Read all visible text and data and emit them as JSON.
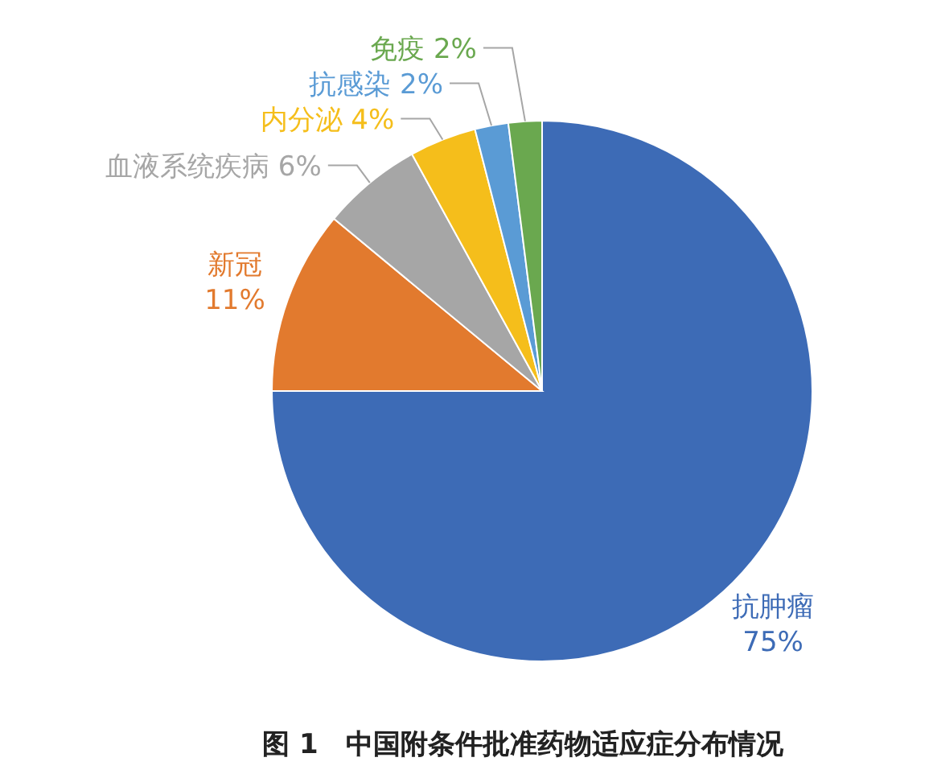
{
  "chart_data": {
    "type": "pie",
    "title": "图 1　中国附条件批准药物适应症分布情况",
    "categories": [
      "抗肿瘤",
      "新冠",
      "血液系统疾病",
      "内分泌",
      "抗感染",
      "免疫"
    ],
    "values": [
      75,
      11,
      6,
      4,
      2,
      2
    ],
    "value_labels": [
      "75%",
      "11%",
      "6%",
      "4%",
      "2%",
      "2%"
    ],
    "colors": [
      "#3d6bb6",
      "#e27a2e",
      "#a6a6a6",
      "#f5be1b",
      "#5a9bd5",
      "#6aa84f"
    ]
  }
}
